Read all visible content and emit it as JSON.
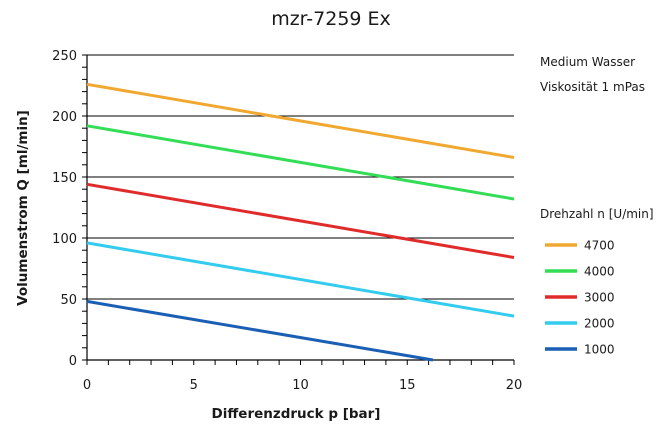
{
  "chart_data": {
    "type": "line",
    "title": "mzr-7259 Ex",
    "xlabel": "Differenzdruck p [bar]",
    "ylabel": "Volumenstrom Q [ml/min]",
    "xlim": [
      0,
      20
    ],
    "ylim": [
      0,
      250
    ],
    "x_ticks": [
      "0",
      "5",
      "10",
      "15",
      "20"
    ],
    "y_ticks": [
      "0",
      "50",
      "100",
      "150",
      "200",
      "250"
    ],
    "grid": "horizontal",
    "notes": [
      "Medium Wasser",
      "Viskosität 1 mPas"
    ],
    "legend_title": "Drehzahl n [U/min]",
    "legend_position": "right",
    "series": [
      {
        "name": "4700",
        "color": "#f0a830",
        "x": [
          0,
          20
        ],
        "y": [
          226,
          166
        ]
      },
      {
        "name": "4000",
        "color": "#33dd55",
        "x": [
          0,
          20
        ],
        "y": [
          192,
          132
        ]
      },
      {
        "name": "3000",
        "color": "#e02b2b",
        "x": [
          0,
          20
        ],
        "y": [
          144,
          84
        ]
      },
      {
        "name": "2000",
        "color": "#33ccee",
        "x": [
          0,
          20
        ],
        "y": [
          96,
          36
        ]
      },
      {
        "name": "1000",
        "color": "#1a5fb4",
        "x": [
          0,
          16.2
        ],
        "y": [
          48,
          0
        ]
      }
    ]
  }
}
